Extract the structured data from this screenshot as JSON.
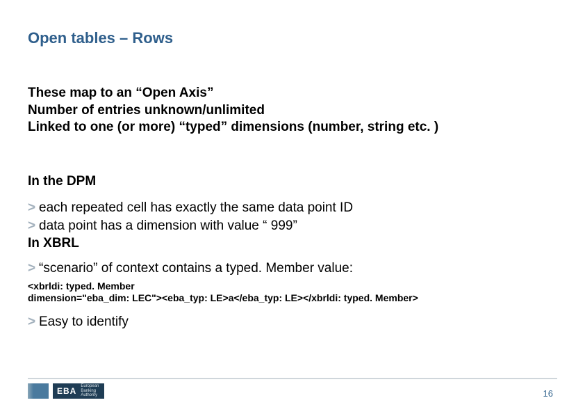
{
  "title": "Open tables – Rows",
  "intro": {
    "line1": "These map to an “Open Axis”",
    "line2": "Number of entries unknown/unlimited",
    "line3": "Linked to one (or more) “typed” dimensions (number, string etc. )"
  },
  "section_dpm": "In the DPM",
  "bullets_dpm": {
    "b1": "each repeated cell has exactly the same data point ID",
    "b2": "data point has a dimension with value “ 999”"
  },
  "section_xbrl": "In XBRL",
  "bullets_xbrl": {
    "b1": "“scenario” of context contains a typed. Member value:"
  },
  "code": {
    "line1": "<xbrldi: typed. Member",
    "line2": "dimension=\"eba_dim: LEC\"><eba_typ: LE>a</eba_typ: LE></xbrldi: typed. Member>"
  },
  "bullet_final": "Easy to identify",
  "logo": {
    "abbr": "EBA",
    "sub1": "European",
    "sub2": "Banking",
    "sub3": "Authority"
  },
  "page_number": "16",
  "colors": {
    "title": "#2f5f8c",
    "bullet_marker": "#a3b1bd",
    "footer_line": "#cfd6db",
    "logo_dark": "#1f3d55",
    "logo_mid": "#4a7a9e",
    "page_num": "#3a6a92"
  }
}
